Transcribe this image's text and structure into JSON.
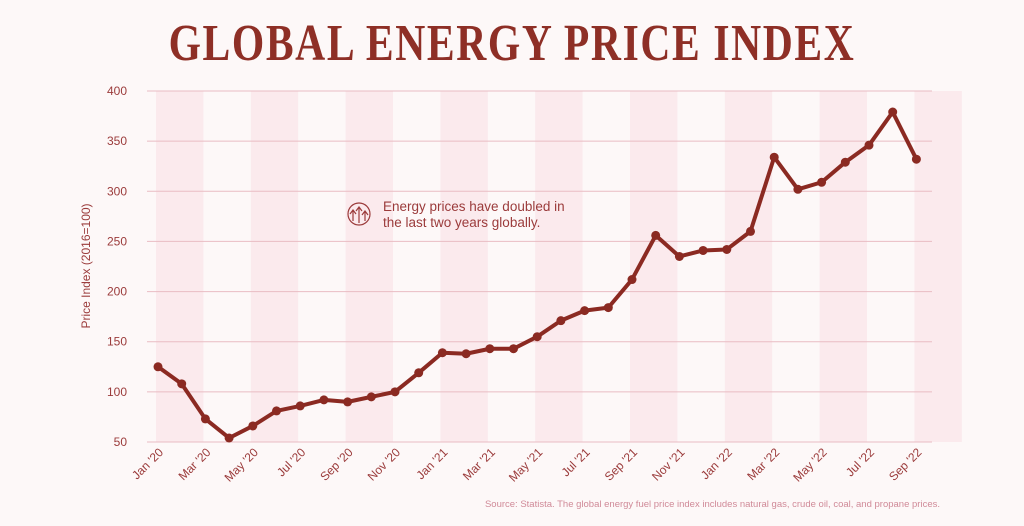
{
  "chart_data": {
    "type": "line",
    "title": "GLOBAL ENERGY PRICE INDEX",
    "xlabel": "",
    "ylabel": "Price Index (2016=100)",
    "ylim": [
      50,
      400
    ],
    "yticks": [
      50,
      100,
      150,
      200,
      250,
      300,
      350,
      400
    ],
    "grid": true,
    "x": [
      "Jan '20",
      "Feb '20",
      "Mar '20",
      "Apr '20",
      "May '20",
      "Jun '20",
      "Jul '20",
      "Aug '20",
      "Sep '20",
      "Oct '20",
      "Nov '20",
      "Dec '20",
      "Jan '21",
      "Feb '21",
      "Mar '21",
      "Apr '21",
      "May '21",
      "Jun '21",
      "Jul '21",
      "Aug '21",
      "Sep '21",
      "Oct '21",
      "Nov '21",
      "Dec '21",
      "Jan '22",
      "Feb '22",
      "Mar '22",
      "Apr '22",
      "May '22",
      "Jun '22",
      "Jul '22",
      "Aug '22",
      "Sep '22"
    ],
    "xtick_labels": [
      "Jan '20",
      "Mar '20",
      "May '20",
      "Jul '20",
      "Sep '20",
      "Nov '20",
      "Jan '21",
      "Mar '21",
      "May '21",
      "Jul '21",
      "Sep '21",
      "Nov '21",
      "Jan '22",
      "Mar '22",
      "May '22",
      "Jul '22",
      "Sep '22"
    ],
    "series": [
      {
        "values": [
          125,
          108,
          73,
          54,
          66,
          81,
          86,
          92,
          90,
          95,
          100,
          119,
          139,
          138,
          143,
          143,
          155,
          171,
          181,
          184,
          212,
          256,
          235,
          241,
          242,
          260,
          334,
          302,
          309,
          329,
          346,
          379,
          332
        ]
      }
    ],
    "annotation": {
      "icon": "rising-arrows-icon",
      "lines": [
        "Energy prices have doubled in",
        "the last two years globally."
      ]
    },
    "source": "Source: Statista. The global energy fuel price index includes natural gas, crude oil, coal, and propane prices.",
    "colors": {
      "line": "#8b2a22",
      "grid": "#e9bcc3",
      "band": "#fbeaed",
      "text": "#9b3b3b"
    }
  }
}
